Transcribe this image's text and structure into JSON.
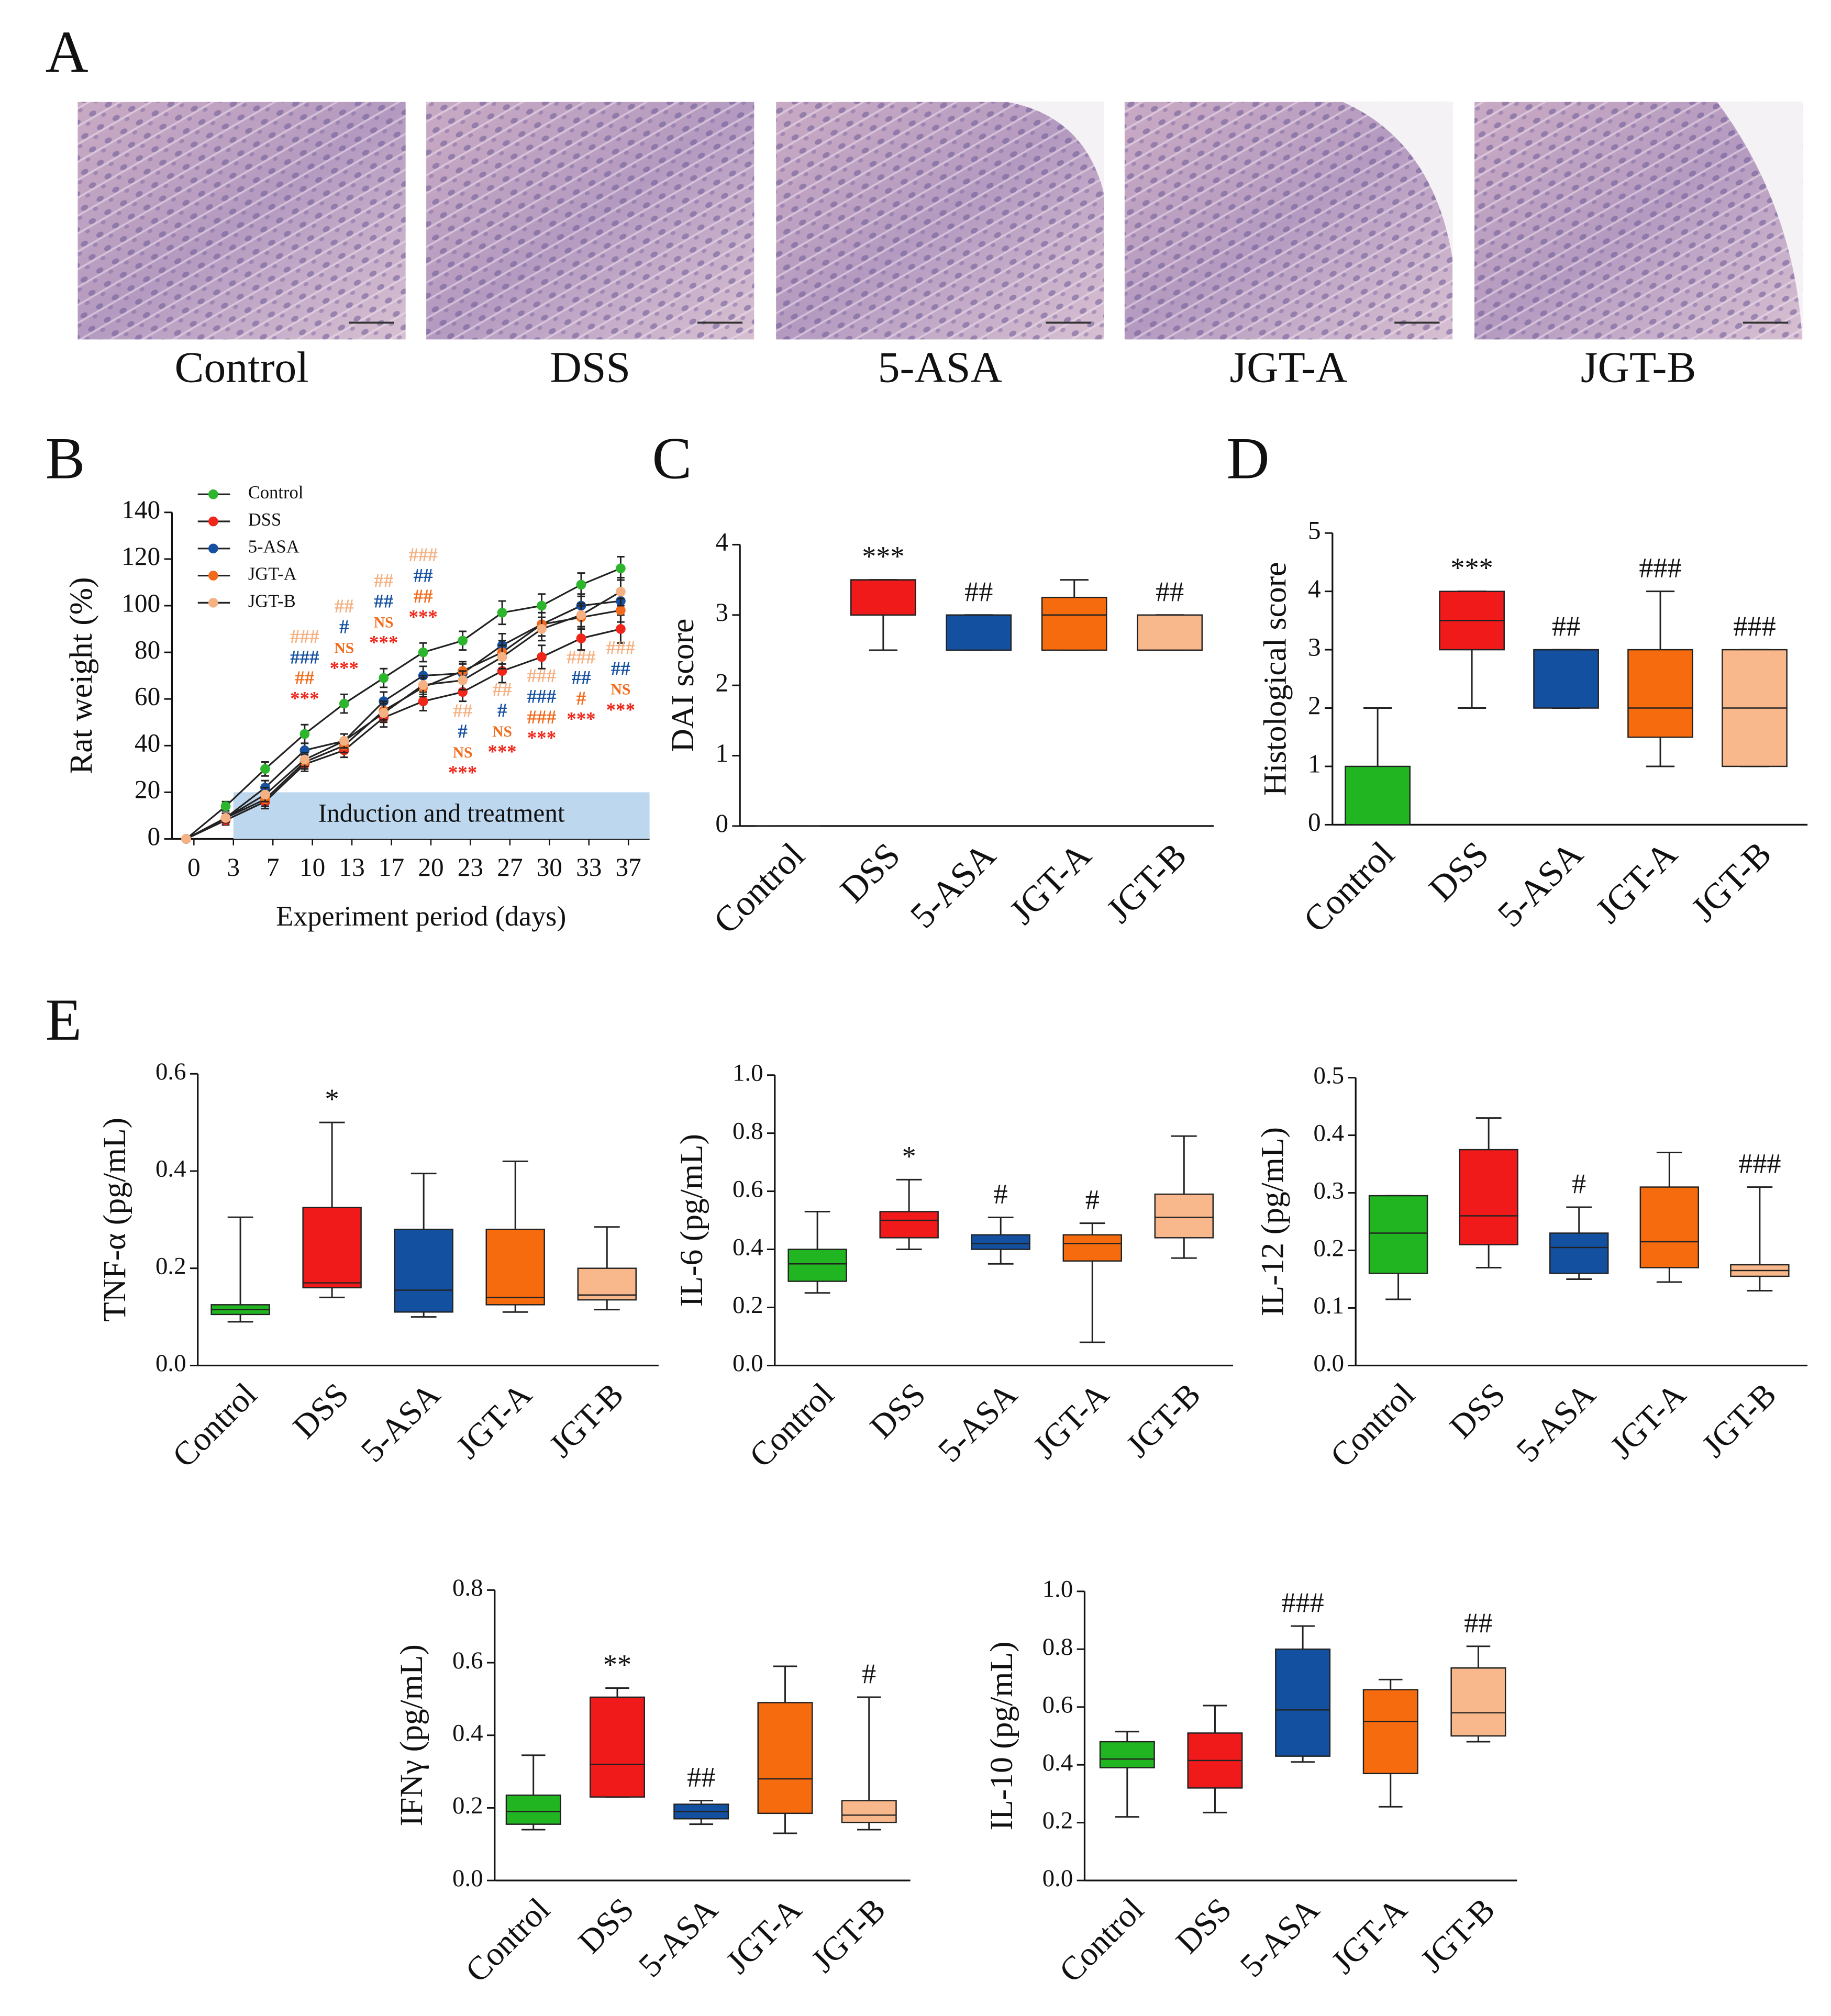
{
  "figure": {
    "panel_labels": [
      "A",
      "B",
      "C",
      "D",
      "E"
    ],
    "histology": {
      "labels": [
        "Control",
        "DSS",
        "5-ASA",
        "JGT-A",
        "JGT-B"
      ]
    }
  },
  "chart_data": [
    {
      "type": "line",
      "y_label": "Rat weight (%)",
      "x_label": "Experiment period (days)",
      "categories": [
        "0",
        "3",
        "7",
        "10",
        "13",
        "17",
        "20",
        "23",
        "27",
        "30",
        "33",
        "37"
      ],
      "ylim": [
        0,
        140
      ],
      "yticks": [
        0,
        20,
        40,
        60,
        80,
        100,
        120,
        140
      ],
      "legend": "upper left",
      "band": {
        "label": "Induction and treatment",
        "ylim": [
          0,
          20
        ],
        "color": "#bdd7ee"
      },
      "series": [
        {
          "name": "Control",
          "color": "#2db52d",
          "values": [
            0,
            14,
            30,
            45,
            58,
            69,
            80,
            85,
            97,
            100,
            109,
            116
          ],
          "errors": [
            1,
            2,
            3,
            4,
            4,
            4,
            4,
            4,
            5,
            5,
            5,
            5
          ]
        },
        {
          "name": "DSS",
          "color": "#f0261a",
          "values": [
            0,
            8,
            16,
            32,
            38,
            52,
            59,
            63,
            72,
            78,
            86,
            90
          ],
          "errors": [
            1,
            2,
            3,
            3,
            3,
            4,
            4,
            4,
            5,
            5,
            5,
            6
          ]
        },
        {
          "name": "5-ASA",
          "color": "#1650a0",
          "values": [
            0,
            9,
            22,
            38,
            42,
            59,
            70,
            71,
            83,
            92,
            100,
            102
          ],
          "errors": [
            1,
            2,
            3,
            3,
            3,
            4,
            4,
            4,
            5,
            5,
            5,
            5
          ]
        },
        {
          "name": "JGT-A",
          "color": "#f26a1b",
          "values": [
            0,
            9,
            17,
            33,
            40,
            55,
            65,
            72,
            80,
            92,
            95,
            98
          ],
          "errors": [
            1,
            2,
            3,
            3,
            3,
            4,
            4,
            4,
            5,
            5,
            5,
            5
          ]
        },
        {
          "name": "JGT-B",
          "color": "#f4b183",
          "values": [
            0,
            9,
            19,
            34,
            42,
            54,
            66,
            68,
            78,
            90,
            96,
            106
          ],
          "errors": [
            1,
            2,
            3,
            3,
            3,
            4,
            4,
            4,
            5,
            5,
            5,
            6
          ]
        }
      ],
      "significance": [
        {
          "category": "10",
          "position": "above",
          "marks": [
            {
              "text": "###",
              "color": "#f4b183"
            },
            {
              "text": "###",
              "color": "#1650a0"
            },
            {
              "text": "##",
              "color": "#f26a1b"
            },
            {
              "text": "***",
              "color": "#f0261a"
            }
          ]
        },
        {
          "category": "13",
          "position": "above",
          "marks": [
            {
              "text": "##",
              "color": "#f4b183"
            },
            {
              "text": "#",
              "color": "#1650a0"
            },
            {
              "text": "NS",
              "color": "#f26a1b"
            },
            {
              "text": "***",
              "color": "#f0261a"
            }
          ]
        },
        {
          "category": "17",
          "position": "above",
          "marks": [
            {
              "text": "##",
              "color": "#f4b183"
            },
            {
              "text": "##",
              "color": "#1650a0"
            },
            {
              "text": "NS",
              "color": "#f26a1b"
            },
            {
              "text": "***",
              "color": "#f0261a"
            }
          ]
        },
        {
          "category": "20",
          "position": "above",
          "marks": [
            {
              "text": "###",
              "color": "#f4b183"
            },
            {
              "text": "##",
              "color": "#1650a0"
            },
            {
              "text": "##",
              "color": "#f26a1b"
            },
            {
              "text": "***",
              "color": "#f0261a"
            }
          ]
        },
        {
          "category": "23",
          "position": "below",
          "marks": [
            {
              "text": "##",
              "color": "#f4b183"
            },
            {
              "text": "#",
              "color": "#1650a0"
            },
            {
              "text": "NS",
              "color": "#f26a1b"
            },
            {
              "text": "***",
              "color": "#f0261a"
            }
          ]
        },
        {
          "category": "27",
          "position": "below",
          "marks": [
            {
              "text": "##",
              "color": "#f4b183"
            },
            {
              "text": "#",
              "color": "#1650a0"
            },
            {
              "text": "NS",
              "color": "#f26a1b"
            },
            {
              "text": "***",
              "color": "#f0261a"
            }
          ]
        },
        {
          "category": "30",
          "position": "below",
          "marks": [
            {
              "text": "###",
              "color": "#f4b183"
            },
            {
              "text": "###",
              "color": "#1650a0"
            },
            {
              "text": "###",
              "color": "#f26a1b"
            },
            {
              "text": "***",
              "color": "#f0261a"
            }
          ]
        },
        {
          "category": "33",
          "position": "below",
          "marks": [
            {
              "text": "###",
              "color": "#f4b183"
            },
            {
              "text": "##",
              "color": "#1650a0"
            },
            {
              "text": "#",
              "color": "#f26a1b"
            },
            {
              "text": "***",
              "color": "#f0261a"
            }
          ]
        },
        {
          "category": "37",
          "position": "below",
          "marks": [
            {
              "text": "###",
              "color": "#f4b183"
            },
            {
              "text": "##",
              "color": "#1650a0"
            },
            {
              "text": "NS",
              "color": "#f26a1b"
            },
            {
              "text": "***",
              "color": "#f0261a"
            }
          ]
        }
      ]
    },
    {
      "type": "box",
      "y_label": "DAI score",
      "categories": [
        "Control",
        "DSS",
        "5-ASA",
        "JGT-A",
        "JGT-B"
      ],
      "colors": [
        "#22b522",
        "#f01a1a",
        "#1450a0",
        "#f76b0f",
        "#f8b88b"
      ],
      "ylim": [
        0,
        4
      ],
      "yticks": [
        0,
        1,
        2,
        3,
        4
      ],
      "boxes": [
        {
          "min": 0,
          "q1": 0,
          "median": 0,
          "q3": 0,
          "max": 0
        },
        {
          "min": 2.5,
          "q1": 3,
          "median": 3.5,
          "q3": 3.5,
          "max": 3.5
        },
        {
          "min": 2.5,
          "q1": 2.5,
          "median": 3,
          "q3": 3,
          "max": 3
        },
        {
          "min": 2.5,
          "q1": 2.5,
          "median": 3,
          "q3": 3.25,
          "max": 3.5
        },
        {
          "min": 2.5,
          "q1": 2.5,
          "median": 2.5,
          "q3": 3,
          "max": 3
        }
      ],
      "annotations": [
        null,
        "***",
        "##",
        null,
        "##"
      ]
    },
    {
      "type": "box",
      "y_label": "Histological score",
      "categories": [
        "Control",
        "DSS",
        "5-ASA",
        "JGT-A",
        "JGT-B"
      ],
      "colors": [
        "#22b522",
        "#f01a1a",
        "#1450a0",
        "#f76b0f",
        "#f8b88b"
      ],
      "ylim": [
        0,
        5
      ],
      "yticks": [
        0,
        1,
        2,
        3,
        4,
        5
      ],
      "boxes": [
        {
          "min": 0,
          "q1": 0,
          "median": 0,
          "q3": 1,
          "max": 2
        },
        {
          "min": 2,
          "q1": 3,
          "median": 3.5,
          "q3": 4,
          "max": 4
        },
        {
          "min": 2,
          "q1": 2,
          "median": 3,
          "q3": 3,
          "max": 3
        },
        {
          "min": 1,
          "q1": 1.5,
          "median": 2,
          "q3": 3,
          "max": 4
        },
        {
          "min": 1,
          "q1": 1,
          "median": 2,
          "q3": 3,
          "max": 3
        }
      ],
      "annotations": [
        null,
        "***",
        "##",
        "###",
        "###"
      ]
    },
    {
      "type": "box",
      "y_label": "TNF-α (pg/mL)",
      "categories": [
        "Control",
        "DSS",
        "5-ASA",
        "JGT-A",
        "JGT-B"
      ],
      "colors": [
        "#22b522",
        "#f01a1a",
        "#1450a0",
        "#f76b0f",
        "#f8b88b"
      ],
      "ylim": [
        0,
        0.6
      ],
      "yticks": [
        {
          "value": 0,
          "label": "0.0"
        },
        0.2,
        0.4,
        0.6
      ],
      "boxes": [
        {
          "min": 0.09,
          "q1": 0.105,
          "median": 0.115,
          "q3": 0.125,
          "max": 0.305
        },
        {
          "min": 0.14,
          "q1": 0.16,
          "median": 0.17,
          "q3": 0.325,
          "max": 0.5
        },
        {
          "min": 0.1,
          "q1": 0.11,
          "median": 0.155,
          "q3": 0.28,
          "max": 0.395
        },
        {
          "min": 0.11,
          "q1": 0.125,
          "median": 0.14,
          "q3": 0.28,
          "max": 0.42
        },
        {
          "min": 0.115,
          "q1": 0.135,
          "median": 0.145,
          "q3": 0.2,
          "max": 0.285
        }
      ],
      "annotations": [
        null,
        "*",
        null,
        null,
        null
      ]
    },
    {
      "type": "box",
      "y_label": "IL-6 (pg/mL)",
      "categories": [
        "Control",
        "DSS",
        "5-ASA",
        "JGT-A",
        "JGT-B"
      ],
      "colors": [
        "#22b522",
        "#f01a1a",
        "#1450a0",
        "#f76b0f",
        "#f8b88b"
      ],
      "ylim": [
        0,
        1
      ],
      "yticks": [
        {
          "value": 0,
          "label": "0.0"
        },
        0.2,
        0.4,
        0.6,
        0.8,
        {
          "value": 1,
          "label": "1.0"
        }
      ],
      "boxes": [
        {
          "min": 0.25,
          "q1": 0.29,
          "median": 0.35,
          "q3": 0.4,
          "max": 0.53
        },
        {
          "min": 0.4,
          "q1": 0.44,
          "median": 0.5,
          "q3": 0.53,
          "max": 0.64
        },
        {
          "min": 0.35,
          "q1": 0.4,
          "median": 0.42,
          "q3": 0.45,
          "max": 0.51
        },
        {
          "min": 0.08,
          "q1": 0.36,
          "median": 0.42,
          "q3": 0.45,
          "max": 0.49
        },
        {
          "min": 0.37,
          "q1": 0.44,
          "median": 0.51,
          "q3": 0.59,
          "max": 0.79
        }
      ],
      "annotations": [
        null,
        "*",
        "#",
        "#",
        null
      ]
    },
    {
      "type": "box",
      "y_label": "IL-12 (pg/mL)",
      "categories": [
        "Control",
        "DSS",
        "5-ASA",
        "JGT-A",
        "JGT-B"
      ],
      "colors": [
        "#22b522",
        "#f01a1a",
        "#1450a0",
        "#f76b0f",
        "#f8b88b"
      ],
      "ylim": [
        0,
        0.5
      ],
      "yticks": [
        {
          "value": 0,
          "label": "0.0"
        },
        0.1,
        0.2,
        0.3,
        0.4,
        0.5
      ],
      "boxes": [
        {
          "min": 0.115,
          "q1": 0.16,
          "median": 0.23,
          "q3": 0.295,
          "max": 0.295
        },
        {
          "min": 0.17,
          "q1": 0.21,
          "median": 0.26,
          "q3": 0.375,
          "max": 0.43
        },
        {
          "min": 0.15,
          "q1": 0.16,
          "median": 0.205,
          "q3": 0.23,
          "max": 0.275
        },
        {
          "min": 0.145,
          "q1": 0.17,
          "median": 0.215,
          "q3": 0.31,
          "max": 0.37
        },
        {
          "min": 0.13,
          "q1": 0.155,
          "median": 0.165,
          "q3": 0.175,
          "max": 0.31
        }
      ],
      "annotations": [
        null,
        null,
        "#",
        null,
        "###"
      ]
    },
    {
      "type": "box",
      "y_label": "IFNγ (pg/mL)",
      "categories": [
        "Control",
        "DSS",
        "5-ASA",
        "JGT-A",
        "JGT-B"
      ],
      "colors": [
        "#22b522",
        "#f01a1a",
        "#1450a0",
        "#f76b0f",
        "#f8b88b"
      ],
      "ylim": [
        0,
        0.8
      ],
      "yticks": [
        {
          "value": 0,
          "label": "0.0"
        },
        0.2,
        0.4,
        0.6,
        0.8
      ],
      "boxes": [
        {
          "min": 0.14,
          "q1": 0.155,
          "median": 0.19,
          "q3": 0.235,
          "max": 0.345
        },
        {
          "min": 0.23,
          "q1": 0.23,
          "median": 0.32,
          "q3": 0.505,
          "max": 0.53
        },
        {
          "min": 0.155,
          "q1": 0.17,
          "median": 0.19,
          "q3": 0.21,
          "max": 0.22
        },
        {
          "min": 0.13,
          "q1": 0.185,
          "median": 0.28,
          "q3": 0.49,
          "max": 0.59
        },
        {
          "min": 0.14,
          "q1": 0.16,
          "median": 0.18,
          "q3": 0.22,
          "max": 0.505
        }
      ],
      "annotations": [
        null,
        "**",
        "##",
        null,
        "#"
      ]
    },
    {
      "type": "box",
      "y_label": "IL-10 (pg/mL)",
      "categories": [
        "Control",
        "DSS",
        "5-ASA",
        "JGT-A",
        "JGT-B"
      ],
      "colors": [
        "#22b522",
        "#f01a1a",
        "#1450a0",
        "#f76b0f",
        "#f8b88b"
      ],
      "ylim": [
        0,
        1
      ],
      "yticks": [
        {
          "value": 0,
          "label": "0.0"
        },
        0.2,
        0.4,
        0.6,
        0.8,
        {
          "value": 1,
          "label": "1.0"
        }
      ],
      "boxes": [
        {
          "min": 0.22,
          "q1": 0.39,
          "median": 0.42,
          "q3": 0.48,
          "max": 0.515
        },
        {
          "min": 0.235,
          "q1": 0.32,
          "median": 0.415,
          "q3": 0.51,
          "max": 0.605
        },
        {
          "min": 0.41,
          "q1": 0.43,
          "median": 0.59,
          "q3": 0.8,
          "max": 0.88
        },
        {
          "min": 0.255,
          "q1": 0.37,
          "median": 0.55,
          "q3": 0.66,
          "max": 0.695
        },
        {
          "min": 0.48,
          "q1": 0.5,
          "median": 0.58,
          "q3": 0.735,
          "max": 0.81
        }
      ],
      "annotations": [
        null,
        null,
        "###",
        null,
        "##"
      ]
    }
  ]
}
